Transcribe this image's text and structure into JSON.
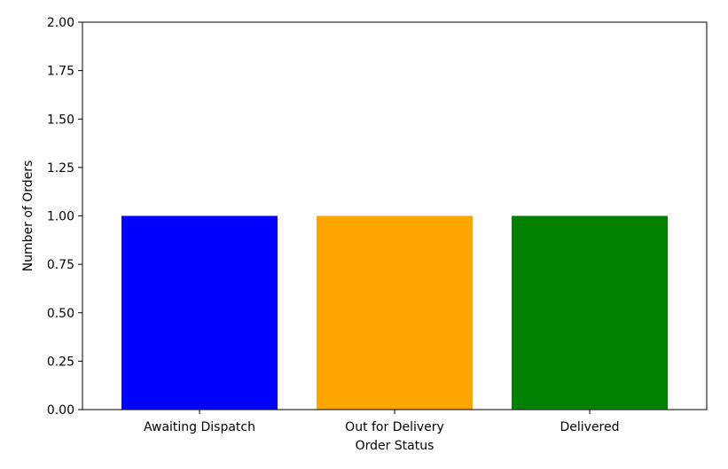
{
  "chart_data": {
    "type": "bar",
    "title": "",
    "xlabel": "Order Status",
    "ylabel": "Number of Orders",
    "categories": [
      "Awaiting Dispatch",
      "Out for Delivery",
      "Delivered"
    ],
    "values": [
      1,
      1,
      1
    ],
    "colors": [
      "#0000ff",
      "#ffa500",
      "#008000"
    ],
    "ylim": [
      0,
      2
    ],
    "yticks": [
      "0.00",
      "0.25",
      "0.50",
      "0.75",
      "1.00",
      "1.25",
      "1.50",
      "1.75",
      "2.00"
    ],
    "grid": false,
    "legend": "none"
  }
}
